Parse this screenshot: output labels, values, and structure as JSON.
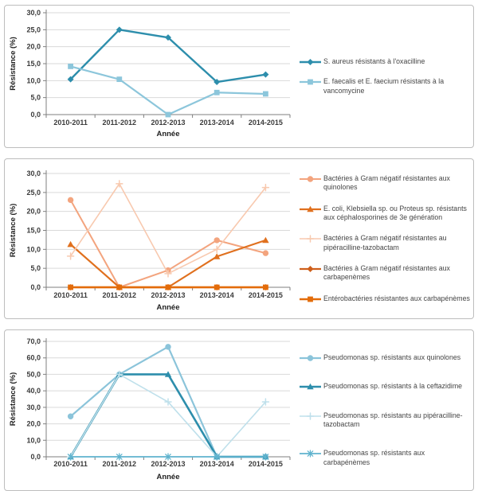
{
  "chart_data": [
    {
      "type": "line",
      "title": "",
      "xlabel": "Année",
      "ylabel": "Résistance (%)",
      "categories": [
        "2010-2011",
        "2011-2012",
        "2012-2013",
        "2013-2014",
        "2014-2015"
      ],
      "ylim": [
        0,
        30
      ],
      "ytick_step": 5,
      "grid": true,
      "legend_position": "right",
      "decimal_separator": ",",
      "series": [
        {
          "name": "S. aureus résistants à l'oxacilline",
          "color": "#2D8EAC",
          "marker": "diamond",
          "line_width": 2.4,
          "values": [
            10.4,
            25.0,
            22.7,
            9.6,
            11.8
          ]
        },
        {
          "name": "E. faecalis et E. faecium résistants à la vancomycine",
          "color": "#8CC6DB",
          "marker": "square",
          "line_width": 2.2,
          "values": [
            14.2,
            10.4,
            0.0,
            6.5,
            6.1
          ]
        }
      ]
    },
    {
      "type": "line",
      "title": "",
      "xlabel": "Année",
      "ylabel": "Résistance (%)",
      "categories": [
        "2010-2011",
        "2011-2012",
        "2012-2013",
        "2013-2014",
        "2014-2015"
      ],
      "ylim": [
        0,
        30
      ],
      "ytick_step": 5,
      "grid": true,
      "legend_position": "right",
      "decimal_separator": ",",
      "series": [
        {
          "name": "Bactéries à Gram négatif résistantes aux quinolones",
          "color": "#F3A47E",
          "marker": "circle",
          "line_width": 2.0,
          "values": [
            23.0,
            0.0,
            4.5,
            12.4,
            9.0
          ]
        },
        {
          "name": "E. coli, Klebsiella sp. ou Proteus sp. résistants aux céphalosporines de 3e génération",
          "color": "#E0701E",
          "marker": "triangle",
          "line_width": 2.2,
          "values": [
            11.3,
            0.0,
            0.0,
            8.1,
            12.4
          ]
        },
        {
          "name": "Bactéries à Gram négatif résistantes au pipéracilline-tazobactam",
          "color": "#F8C9AF",
          "marker": "plus",
          "line_width": 1.6,
          "values": [
            8.2,
            27.3,
            3.6,
            10.0,
            26.3
          ]
        },
        {
          "name": "Bactéries à Gram négatif résistantes aux carbapenèmes",
          "color": "#CE5F1B",
          "marker": "diamond",
          "line_width": 2.2,
          "values": [
            0.0,
            0.0,
            0.0,
            0.0,
            0.0
          ]
        },
        {
          "name": "Entérobactéries résistantes aux carbapénèmes",
          "color": "#E36C0A",
          "marker": "square",
          "line_width": 2.4,
          "values": [
            0.0,
            0.0,
            0.0,
            0.0,
            0.0
          ]
        }
      ]
    },
    {
      "type": "line",
      "title": "",
      "xlabel": "Année",
      "ylabel": "Résistance (%)",
      "categories": [
        "2010-2011",
        "2011-2012",
        "2012-2013",
        "2013-2014",
        "2014-2015"
      ],
      "ylim": [
        0,
        70
      ],
      "ytick_step": 10,
      "grid": true,
      "legend_position": "right",
      "decimal_separator": ",",
      "series": [
        {
          "name": "Pseudomonas sp. résistants aux quinolones",
          "color": "#8BC4DA",
          "marker": "circle",
          "line_width": 2.2,
          "values": [
            24.5,
            50.0,
            66.7,
            0.0,
            0.0
          ]
        },
        {
          "name": "Pseudomonas sp. résistants à la ceftazidime",
          "color": "#2D8EAC",
          "marker": "triangle",
          "line_width": 2.6,
          "values": [
            0.0,
            50.0,
            50.0,
            0.0,
            0.0
          ]
        },
        {
          "name": "Pseudomonas sp. résistants au pipéracilline-tazobactam",
          "color": "#BFE0EB",
          "marker": "plus",
          "line_width": 1.6,
          "values": [
            0.0,
            50.0,
            33.3,
            0.0,
            33.3
          ]
        },
        {
          "name": "Pseudomonas sp. résistants aux carbapénèmes",
          "color": "#5FB3CE",
          "marker": "asterisk",
          "line_width": 1.8,
          "values": [
            0.0,
            0.0,
            0.0,
            0.0,
            0.0
          ]
        }
      ]
    }
  ],
  "style_colors": {
    "gridline": "#D9D9D9",
    "axis": "#7F7F7F",
    "panel_border": "#BDBDBD",
    "tick_text": "#3B3B3B",
    "legend_text": "#454545"
  }
}
